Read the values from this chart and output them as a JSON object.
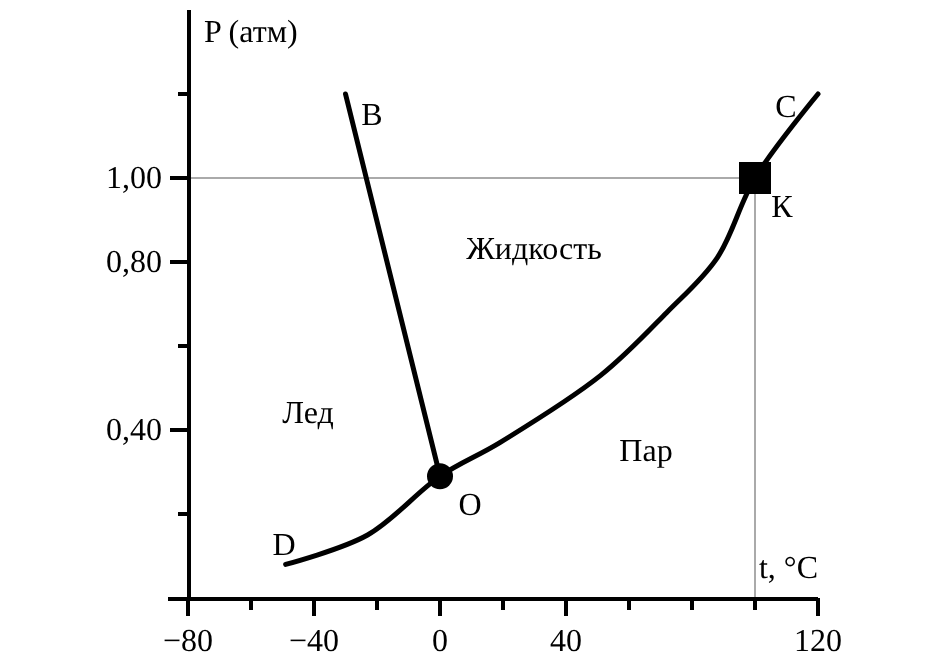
{
  "chart_data": {
    "type": "line",
    "xlabel": "t, °C",
    "ylabel": "P (атм)",
    "xlim": [
      -80,
      120
    ],
    "xticks": [
      -80,
      {
        "value": -60,
        "label": null
      },
      -40,
      {
        "value": -20,
        "label": null
      },
      0,
      {
        "value": 20,
        "label": null
      },
      40,
      {
        "value": 60,
        "label": null
      },
      {
        "value": 80,
        "label": null
      },
      {
        "value": 100,
        "label": null
      },
      120
    ],
    "ylim": [
      0,
      1.4
    ],
    "yticks": [
      {
        "value": 0.2,
        "label": null
      },
      {
        "value": 0.4,
        "label": "0,40"
      },
      {
        "value": 0.6,
        "label": null
      },
      {
        "value": 0.8,
        "label": "0,80"
      },
      {
        "value": 1.0,
        "label": "1,00"
      },
      {
        "value": 1.2,
        "label": null
      }
    ],
    "grid": false,
    "marker": "none",
    "line_style": "solid",
    "series": [
      {
        "color": "#aaaaaa",
        "x": [
          -80,
          100
        ],
        "values": [
          1.0,
          1.0
        ]
      },
      {
        "color": "#aaaaaa",
        "x": [
          100,
          100
        ],
        "values": [
          0,
          1.0
        ]
      },
      {
        "color": "#000000",
        "x": [
          -49,
          -23,
          0,
          19,
          51,
          72,
          88,
          100,
          120
        ],
        "values": [
          0.08,
          0.15,
          0.29,
          0.37,
          0.53,
          0.68,
          0.81,
          1.0,
          1.2
        ]
      },
      {
        "color": "#000000",
        "x": [
          0,
          -30
        ],
        "values": [
          0.29,
          1.2
        ]
      },
      {
        "type": "scatter",
        "marker": "circle",
        "color": "#000000",
        "x": [
          0
        ],
        "values": [
          0.29
        ]
      },
      {
        "type": "scatter",
        "marker": "square",
        "color": "#000000",
        "x": [
          100
        ],
        "values": [
          1.0
        ]
      }
    ],
    "annotations": [
      "B",
      "C",
      "К",
      "O",
      "D",
      "Жидкость",
      "Лед",
      "Пар"
    ]
  }
}
